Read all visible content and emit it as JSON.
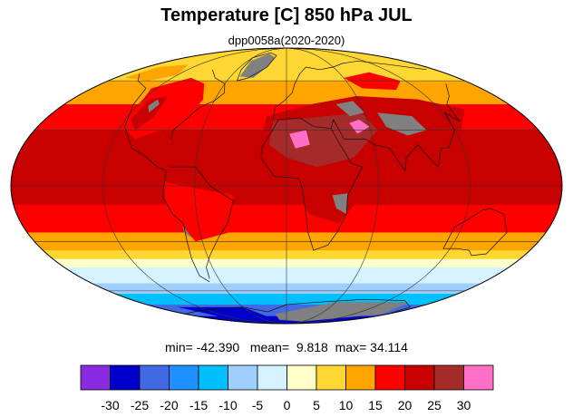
{
  "title": "Temperature [C] 850 hPa JUL",
  "subtitle": "dpp0058a(2020-2020)",
  "stats": {
    "min_label": "min=",
    "min": "-42.390",
    "mean_label": "mean=",
    "mean": "9.818",
    "max_label": "max=",
    "max": "34.114"
  },
  "chart_data": {
    "type": "heatmap",
    "title": "Temperature [C] 850 hPa JUL",
    "subtitle": "dpp0058a(2020-2020)",
    "projection": "mollweide",
    "colorbar": {
      "ticks": [
        "-30",
        "-25",
        "-20",
        "-15",
        "-10",
        "-5",
        "0",
        "5",
        "10",
        "15",
        "20",
        "25",
        "30"
      ],
      "colors": [
        "#8a2be2",
        "#0000cd",
        "#4169e1",
        "#1e90ff",
        "#00bfff",
        "#a0cfff",
        "#d4f2ff",
        "#ffffcc",
        "#ffd732",
        "#ffa500",
        "#ff0000",
        "#c80000",
        "#a52a2a",
        "#ff6ec7"
      ]
    },
    "zonal_bands": [
      {
        "lat_range": [
          60,
          90
        ],
        "class_c": "5 to 10"
      },
      {
        "lat_range": [
          45,
          60
        ],
        "class_c": "10 to 15"
      },
      {
        "lat_range": [
          30,
          45
        ],
        "class_c": "15 to 20"
      },
      {
        "lat_range": [
          -10,
          30
        ],
        "class_c": "20 to 25"
      },
      {
        "lat_range": [
          -25,
          -10
        ],
        "class_c": "15 to 20"
      },
      {
        "lat_range": [
          -35,
          -25
        ],
        "class_c": "10 to 15"
      },
      {
        "lat_range": [
          -40,
          -35
        ],
        "class_c": "5 to 10"
      },
      {
        "lat_range": [
          -45,
          -40
        ],
        "class_c": "0 to 5"
      },
      {
        "lat_range": [
          -55,
          -45
        ],
        "class_c": "-5 to 0"
      },
      {
        "lat_range": [
          -62,
          -55
        ],
        "class_c": "-10 to -5"
      },
      {
        "lat_range": [
          -70,
          -62
        ],
        "class_c": "-15 to -10"
      },
      {
        "lat_range": [
          -80,
          -70
        ],
        "class_c": "-25 to -15"
      },
      {
        "lat_range": [
          -90,
          -80
        ],
        "class_c": "-30 to -25"
      }
    ],
    "stats": {
      "min": -42.39,
      "mean": 9.818,
      "max": 34.114
    },
    "missing_color": "#808080"
  }
}
